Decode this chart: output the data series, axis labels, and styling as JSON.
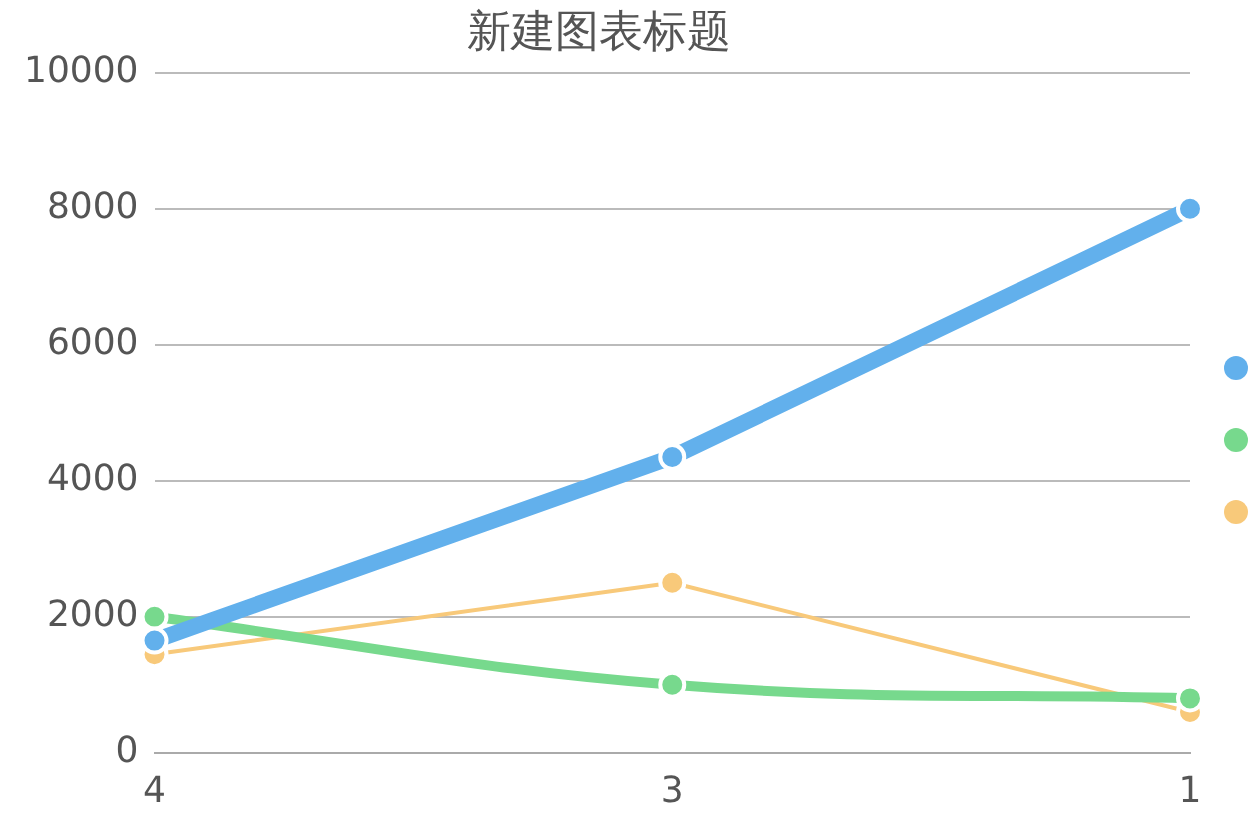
{
  "chart_data": {
    "type": "line",
    "title": "新建图表标题",
    "categories": [
      "4",
      "3",
      "1"
    ],
    "series": [
      {
        "color": "#62b0ec",
        "values": [
          1650,
          4350,
          8000
        ]
      },
      {
        "color": "#77d98d",
        "values": [
          2000,
          1000,
          800
        ]
      },
      {
        "color": "#f8c97a",
        "values": [
          1450,
          2500,
          600
        ]
      }
    ],
    "ylim": [
      0,
      10000
    ],
    "yticks": [
      0,
      2000,
      4000,
      6000,
      8000,
      10000
    ],
    "grid": "y",
    "marker": "circle"
  }
}
